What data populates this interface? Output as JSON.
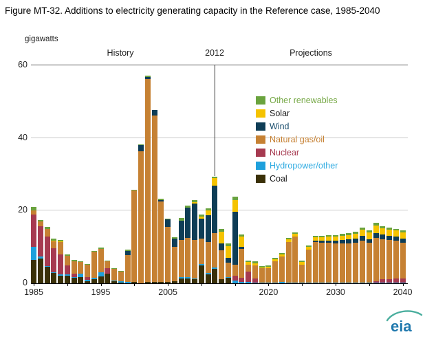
{
  "title": "Figure MT-32. Additions to electricity generating capacity in the Reference case, 1985-2040",
  "axis": {
    "unit_label": "gigawatts",
    "yticks": [
      0,
      20,
      40,
      60
    ],
    "ylim": [
      0,
      60
    ],
    "xtick_labeled_years": [
      1985,
      1995,
      2005,
      2020,
      2030,
      2040
    ],
    "xtick_minor_years": [
      1985,
      1990,
      1995,
      2000,
      2005,
      2010,
      2015,
      2020,
      2025,
      2030,
      2035,
      2040
    ]
  },
  "annotations": {
    "history_label": "History",
    "divider_year_label": "2012",
    "projections_label": "Projections",
    "divider_year": 2012
  },
  "logo": {
    "text": "eia"
  },
  "chart_data": {
    "type": "bar",
    "stacked": true,
    "title": "Figure MT-32. Additions to electricity generating capacity in the Reference case, 1985-2040",
    "xlabel": "",
    "ylabel": "gigawatts",
    "ylim": [
      0,
      60
    ],
    "grid": "horizontal",
    "legend_position": "upper-right-inside",
    "x_start": 1985,
    "x_end": 2040,
    "years": [
      1985,
      1986,
      1987,
      1988,
      1989,
      1990,
      1991,
      1992,
      1993,
      1994,
      1995,
      1996,
      1997,
      1998,
      1999,
      2000,
      2001,
      2002,
      2003,
      2004,
      2005,
      2006,
      2007,
      2008,
      2009,
      2010,
      2011,
      2012,
      2013,
      2014,
      2015,
      2016,
      2017,
      2018,
      2019,
      2020,
      2021,
      2022,
      2023,
      2024,
      2025,
      2026,
      2027,
      2028,
      2029,
      2030,
      2031,
      2032,
      2033,
      2034,
      2035,
      2036,
      2037,
      2038,
      2039,
      2040
    ],
    "series_note": "values in gigawatts, stacking order bottom to top; legend shown in reverse order",
    "series": [
      {
        "name": "Coal",
        "color": "#3a3008",
        "label_color": "#1a1a1a",
        "values": [
          6.5,
          6.8,
          4.5,
          2.8,
          2.1,
          2,
          1.5,
          1.7,
          0.6,
          1.1,
          1.9,
          2.7,
          0.5,
          0.2,
          0,
          0.3,
          0,
          0.3,
          0.3,
          0.3,
          0.3,
          0.6,
          1.4,
          1.4,
          1.1,
          5,
          2.5,
          4,
          1.1,
          1.5,
          0,
          0,
          0,
          0,
          0,
          0,
          0,
          0,
          0,
          0,
          0,
          0,
          0,
          0,
          0,
          0,
          0,
          0,
          0,
          0,
          0,
          0,
          0,
          0,
          0,
          0
        ]
      },
      {
        "name": "Hydropower/other",
        "color": "#1ea0dc",
        "label_color": "#2daae1",
        "values": [
          3.5,
          0.5,
          0.3,
          0.3,
          0.3,
          0.4,
          0.3,
          0.9,
          0.3,
          0.4,
          1.1,
          0,
          0.2,
          0.3,
          0.3,
          0,
          0,
          0,
          0,
          0,
          0,
          0,
          0.3,
          0.3,
          0.3,
          0.3,
          0.3,
          0.3,
          0,
          0.2,
          0.8,
          0.3,
          0.4,
          0.2,
          0.2,
          0.2,
          0.2,
          0.3,
          0.2,
          0.2,
          0.2,
          0.2,
          0.2,
          0.2,
          0.2,
          0.2,
          0.2,
          0.2,
          0.2,
          0.2,
          0.2,
          0.2,
          0.2,
          0.2,
          0.2,
          0.2
        ]
      },
      {
        "name": "Nuclear",
        "color": "#a63a50",
        "label_color": "#a63a50",
        "values": [
          9,
          8.5,
          8,
          6.5,
          5.5,
          2.5,
          0.8,
          0,
          0.9,
          0,
          0,
          1.4,
          0,
          0,
          0,
          0,
          0,
          0,
          0,
          0,
          0,
          0,
          0,
          0,
          0,
          0,
          0,
          0,
          0,
          0,
          1.2,
          1.2,
          2.8,
          1.1,
          0,
          0,
          0,
          0,
          0,
          0,
          0,
          0,
          0,
          0,
          0,
          0,
          0,
          0,
          0,
          0,
          0,
          0.3,
          0.9,
          0.9,
          1.2,
          1.1
        ]
      },
      {
        "name": "Natural gas/oil",
        "color": "#c68133",
        "label_color": "#c68133",
        "values": [
          1,
          1.2,
          2.2,
          2,
          3.5,
          2.7,
          3.5,
          3.2,
          3.3,
          7.2,
          6.5,
          1.9,
          3.3,
          2.7,
          7.5,
          25.2,
          36.3,
          55.9,
          45.9,
          22.2,
          15.3,
          9.4,
          10.2,
          10.8,
          10.5,
          7,
          8.5,
          9.5,
          8,
          3.9,
          3.2,
          8,
          2,
          3.6,
          3.9,
          3.9,
          5.8,
          7,
          11.2,
          12.6,
          4.9,
          9,
          11.2,
          11,
          10.9,
          10.8,
          10.7,
          10.8,
          11,
          11.6,
          11,
          12,
          11.1,
          10.8,
          10.3,
          9.8
        ]
      },
      {
        "name": "Wind",
        "color": "#0e3d56",
        "label_color": "#1c4f6e",
        "values": [
          0,
          0,
          0,
          0,
          0,
          0,
          0,
          0,
          0,
          0,
          0,
          0,
          0,
          0,
          1.1,
          0,
          1.7,
          0.7,
          1.5,
          0.4,
          2,
          2.4,
          5.3,
          8.4,
          10,
          5.5,
          7.5,
          13.1,
          1.9,
          1.5,
          14.5,
          0.5,
          0,
          0,
          0,
          0,
          0,
          0,
          0,
          0,
          0,
          0,
          0.3,
          0.5,
          0.6,
          0.7,
          1,
          1.1,
          1.2,
          1.2,
          1,
          1.3,
          1.3,
          1.2,
          1.1,
          1.2
        ]
      },
      {
        "name": "Solar",
        "color": "#f5c300",
        "label_color": "#1a1a1a",
        "values": [
          0,
          0,
          0,
          0.2,
          0.2,
          0,
          0,
          0,
          0,
          0,
          0,
          0,
          0,
          0,
          0,
          0,
          0,
          0,
          0,
          0,
          0,
          0,
          0,
          0,
          0.4,
          0.5,
          1.3,
          2,
          3.2,
          3.2,
          3.3,
          2.8,
          0.6,
          0.6,
          0.3,
          0.4,
          0.6,
          0.7,
          0.7,
          0.8,
          0.8,
          0.9,
          1,
          1,
          1.1,
          1.1,
          1.2,
          1.2,
          1.3,
          1.7,
          1.8,
          2.2,
          1.7,
          1.7,
          1.7,
          1.8
        ]
      },
      {
        "name": "Other renewables",
        "color": "#6aa33e",
        "label_color": "#76a846",
        "values": [
          1,
          0.5,
          0.5,
          0.5,
          0.4,
          0.4,
          0.4,
          0.3,
          0.2,
          0.3,
          0.3,
          0.3,
          0.2,
          0.2,
          0.3,
          0.3,
          0.3,
          0.3,
          0,
          0.4,
          0.2,
          0.3,
          0.8,
          0.5,
          0.7,
          0.7,
          0.6,
          0.4,
          0.8,
          0.6,
          0.9,
          0.6,
          0.5,
          0.5,
          0.4,
          0.4,
          0.4,
          0.4,
          0.4,
          0.4,
          0.4,
          0.4,
          0.4,
          0.4,
          0.4,
          0.5,
          0.5,
          0.5,
          0.5,
          0.6,
          0.6,
          0.6,
          0.5,
          0.5,
          0.5,
          0.5
        ]
      }
    ]
  }
}
